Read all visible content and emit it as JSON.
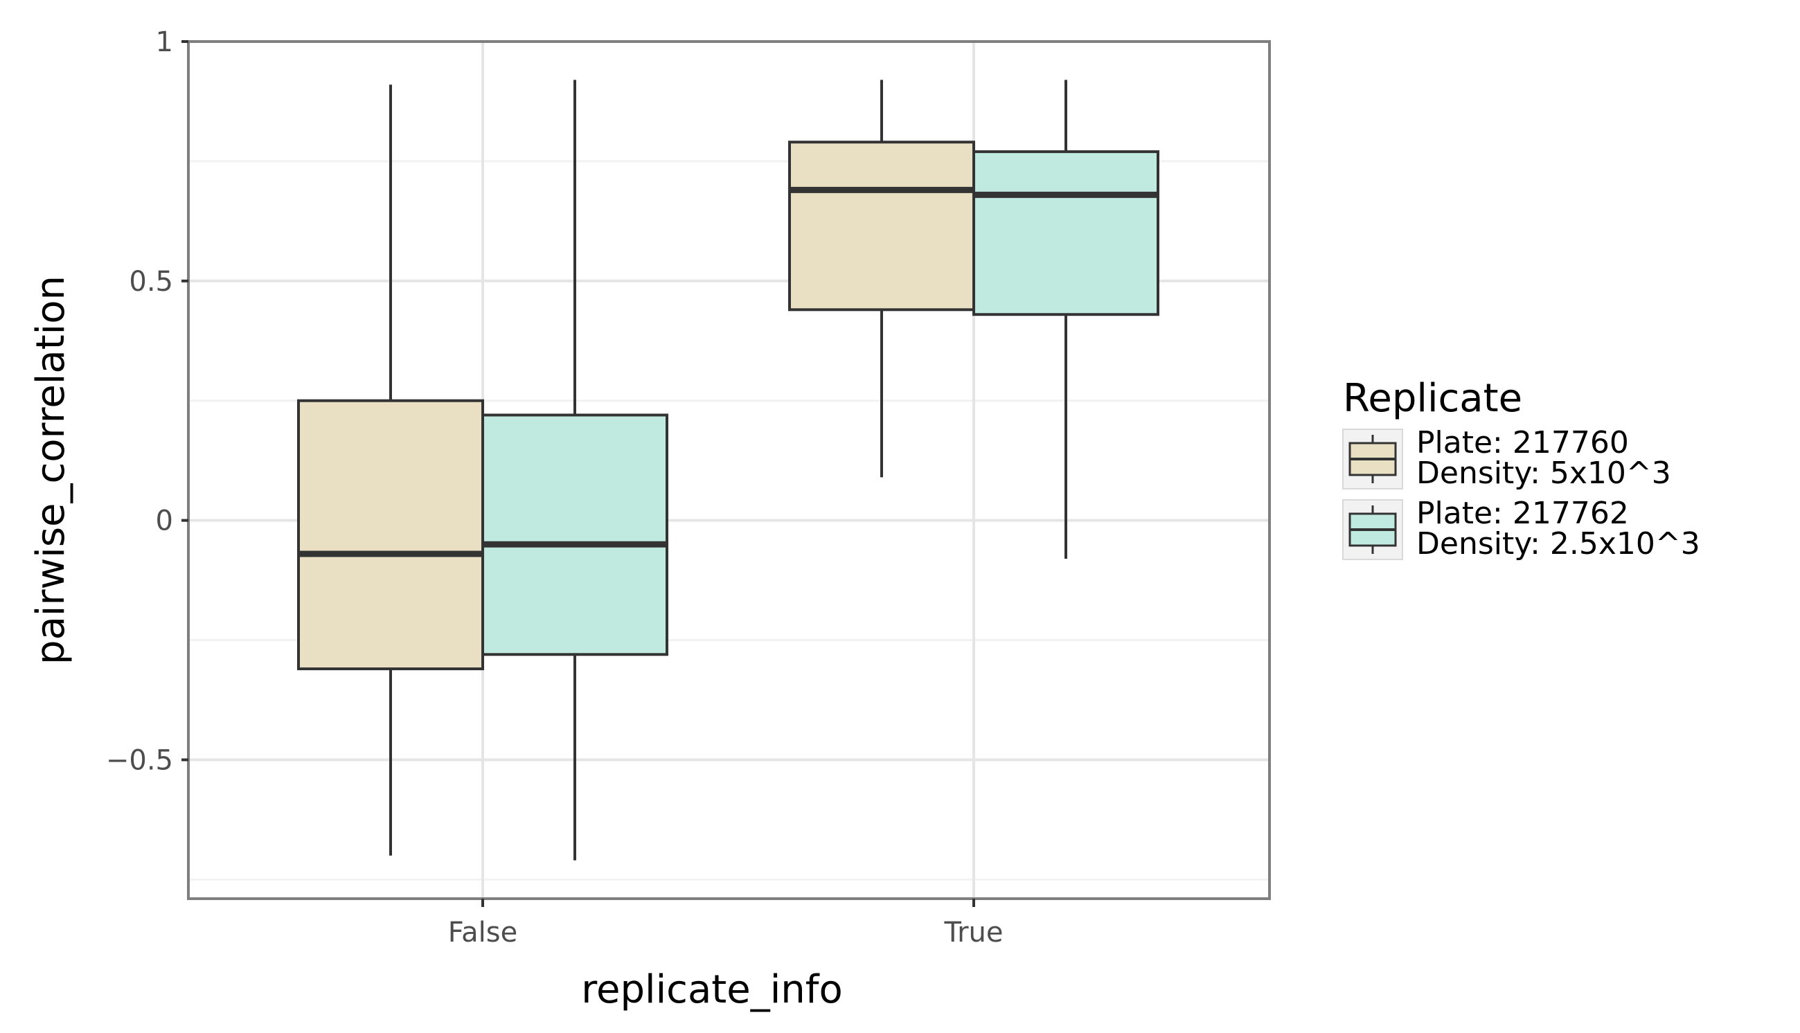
{
  "chart_data": {
    "type": "box",
    "xlabel": "replicate_info",
    "ylabel": "pairwise_correlation",
    "categories": [
      "False",
      "True"
    ],
    "ylim": [
      -0.79,
      1.0
    ],
    "yticks": [
      -0.5,
      0,
      0.5,
      1
    ],
    "ytick_labels": [
      "−0.5",
      "0",
      "0.5",
      "1"
    ],
    "grid": true,
    "legend": {
      "title": "Replicate",
      "placement": "right"
    },
    "series": [
      {
        "name_line1": "Plate: 217760",
        "name_line2": "Density: 5x10^3",
        "color": "#e9dfc3",
        "boxes": [
          {
            "category": "False",
            "whisker_low": -0.7,
            "q1": -0.31,
            "median": -0.07,
            "q3": 0.25,
            "whisker_high": 0.91
          },
          {
            "category": "True",
            "whisker_low": 0.09,
            "q1": 0.44,
            "median": 0.69,
            "q3": 0.79,
            "whisker_high": 0.92
          }
        ]
      },
      {
        "name_line1": "Plate: 217762",
        "name_line2": "Density: 2.5x10^3",
        "color": "#c0e9e0",
        "boxes": [
          {
            "category": "False",
            "whisker_low": -0.71,
            "q1": -0.28,
            "median": -0.05,
            "q3": 0.22,
            "whisker_high": 0.92
          },
          {
            "category": "True",
            "whisker_low": -0.08,
            "q1": 0.43,
            "median": 0.68,
            "q3": 0.77,
            "whisker_high": 0.92
          }
        ]
      }
    ]
  },
  "colors": {
    "panel_border": "#7f7f7f",
    "grid_major": "#e5e5e5",
    "grid_minor": "#f2f2f2",
    "box_stroke": "#333333",
    "legend_key_bg": "#f2f2f2"
  }
}
